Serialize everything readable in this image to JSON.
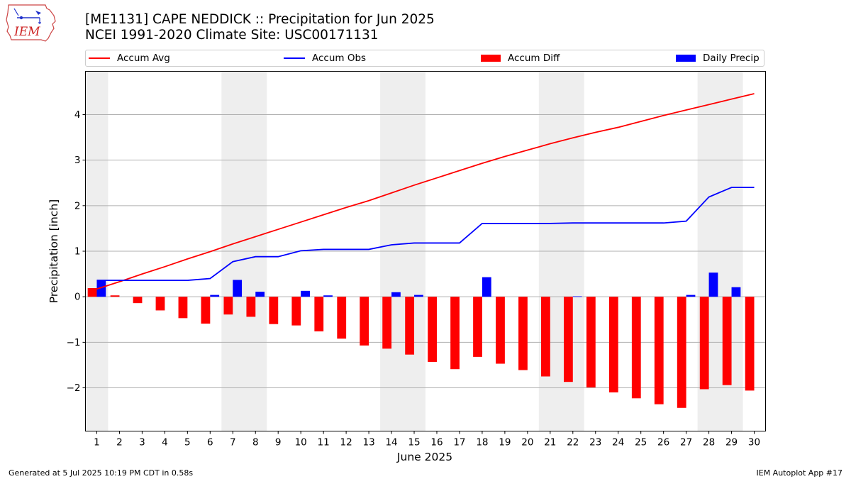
{
  "header": {
    "title": "[ME1131] CAPE NEDDICK :: Precipitation for Jun 2025",
    "subtitle": "NCEI 1991-2020 Climate Site: USC00171131",
    "logo_text": "IEM"
  },
  "footer": {
    "left": "Generated at 5 Jul 2025 10:19 PM CDT in 0.58s",
    "right": "IEM Autoplot App #17"
  },
  "colors": {
    "avg": "#ff0000",
    "obs": "#0000ff",
    "diff": "#ff0000",
    "daily": "#0000ff",
    "weekend_shade": "#eeeeee",
    "grid": "#b0b0b0"
  },
  "legend": {
    "items": [
      {
        "label": "Accum Avg",
        "kind": "line",
        "color": "#ff0000"
      },
      {
        "label": "Accum Obs",
        "kind": "line",
        "color": "#0000ff"
      },
      {
        "label": "Accum Diff",
        "kind": "patch",
        "color": "#ff0000"
      },
      {
        "label": "Daily Precip",
        "kind": "patch",
        "color": "#0000ff"
      }
    ],
    "placement": "top"
  },
  "chart_data": {
    "type": "bar",
    "title": "[ME1131] CAPE NEDDICK :: Precipitation for Jun 2025",
    "xlabel": "June 2025",
    "ylabel": "Precipitation [inch]",
    "ylim": [
      -2.95,
      4.95
    ],
    "xlim": [
      0.5,
      30.5
    ],
    "yticks": [
      -2,
      -1,
      0,
      1,
      2,
      3,
      4
    ],
    "ytick_labels": [
      "−2",
      "−1",
      "0",
      "1",
      "2",
      "3",
      "4"
    ],
    "grid": true,
    "days": [
      1,
      2,
      3,
      4,
      5,
      6,
      7,
      8,
      9,
      10,
      11,
      12,
      13,
      14,
      15,
      16,
      17,
      18,
      19,
      20,
      21,
      22,
      23,
      24,
      25,
      26,
      27,
      28,
      29,
      30
    ],
    "weekend_shading": [
      [
        0.5,
        1.5
      ],
      [
        6.5,
        8.5
      ],
      [
        13.5,
        15.5
      ],
      [
        20.5,
        22.5
      ],
      [
        27.5,
        29.5
      ]
    ],
    "series": [
      {
        "name": "Accum Avg",
        "kind": "line",
        "values": [
          0.17,
          0.33,
          0.5,
          0.66,
          0.83,
          0.99,
          1.16,
          1.32,
          1.48,
          1.64,
          1.8,
          1.96,
          2.11,
          2.28,
          2.45,
          2.61,
          2.77,
          2.93,
          3.08,
          3.22,
          3.36,
          3.49,
          3.61,
          3.72,
          3.85,
          3.98,
          4.1,
          4.22,
          4.34,
          4.46
        ]
      },
      {
        "name": "Accum Obs",
        "kind": "line",
        "values": [
          0.36,
          0.36,
          0.36,
          0.36,
          0.36,
          0.4,
          0.77,
          0.88,
          0.88,
          1.01,
          1.04,
          1.04,
          1.04,
          1.14,
          1.18,
          1.18,
          1.18,
          1.61,
          1.61,
          1.61,
          1.61,
          1.62,
          1.62,
          1.62,
          1.62,
          1.62,
          1.66,
          2.19,
          2.4,
          2.4
        ]
      },
      {
        "name": "Accum Diff",
        "kind": "bar",
        "values": [
          0.19,
          0.03,
          -0.14,
          -0.3,
          -0.47,
          -0.59,
          -0.39,
          -0.44,
          -0.6,
          -0.63,
          -0.76,
          -0.92,
          -1.07,
          -1.14,
          -1.27,
          -1.43,
          -1.59,
          -1.32,
          -1.47,
          -1.61,
          -1.75,
          -1.87,
          -1.99,
          -2.1,
          -2.23,
          -2.36,
          -2.44,
          -2.03,
          -1.94,
          -2.06
        ]
      },
      {
        "name": "Daily Precip",
        "kind": "bar",
        "values": [
          0.36,
          0,
          0,
          0,
          0,
          0.04,
          0.37,
          0.11,
          0,
          0.13,
          0.03,
          0,
          0,
          0.1,
          0.04,
          0,
          0,
          0.43,
          0,
          0,
          0,
          0.01,
          0,
          0,
          0,
          0,
          0.04,
          0.53,
          0.21,
          0
        ]
      }
    ]
  }
}
